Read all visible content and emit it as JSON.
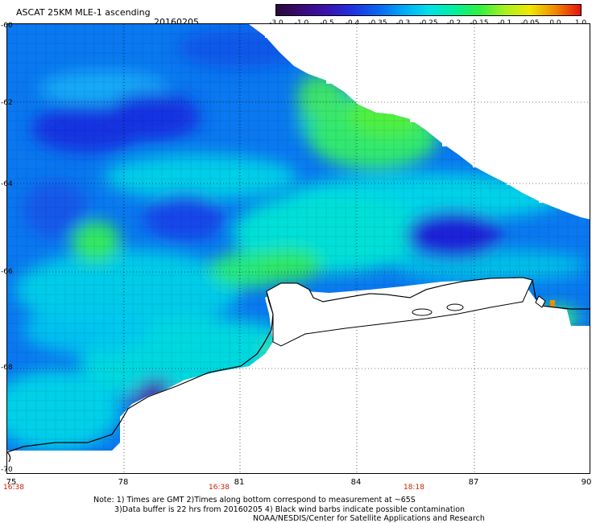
{
  "header": {
    "title": "ASCAT 25KM MLE-1 ascending",
    "date": "20160205"
  },
  "colorbar": {
    "ticks": [
      "-3.0",
      "-1.0",
      "-0.5",
      "-0.4",
      "-0.35",
      "-0.3",
      "-0.25",
      "-0.2",
      "-0.15",
      "-0.1",
      "-0.05",
      "0.0",
      "1.0"
    ],
    "colors": [
      "#2a0a3a",
      "#3a0a78",
      "#3a12b0",
      "#1e32e0",
      "#0a64f0",
      "#00a8f8",
      "#00e0e8",
      "#00f0a0",
      "#30f040",
      "#a8f020",
      "#f0e800",
      "#f08800",
      "#e81010"
    ]
  },
  "map": {
    "lat_labels": [
      "-60",
      "-62",
      "-64",
      "-66",
      "-68",
      "-70"
    ],
    "lon_labels": [
      "75",
      "78",
      "81",
      "84",
      "87",
      "90"
    ],
    "time_labels": [
      "16:38",
      "16:38",
      "18:18"
    ],
    "lon_range": [
      75,
      90
    ],
    "lat_range": [
      -60,
      -70
    ]
  },
  "notes": {
    "line1": "Note: 1) Times are GMT 2)Times along bottom correspond to measurement at ~65S",
    "line2": "3)Data buffer is 22 hrs from 20160205 4) Black wind barbs indicate possible contamination",
    "line3": "NOAA/NESDIS/Center for Satellite Applications and Research"
  }
}
